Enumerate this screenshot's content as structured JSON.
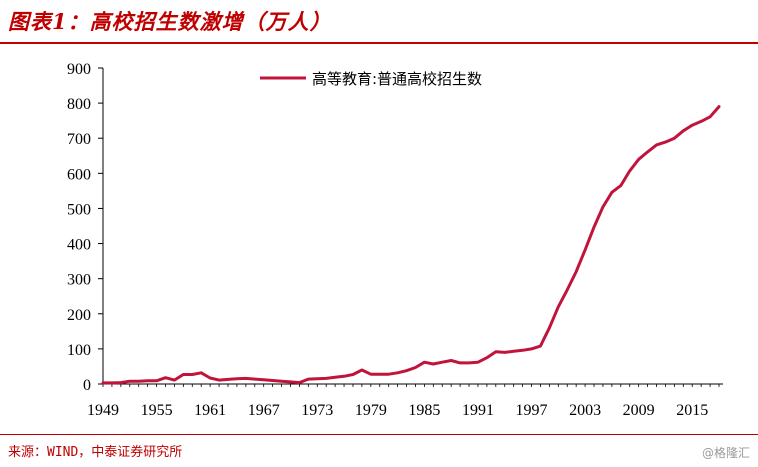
{
  "header": {
    "title": "图表1：高校招生数激增（万人）"
  },
  "footer": {
    "source": "来源：WIND，中泰证券研究所",
    "watermark": "@格隆汇"
  },
  "colors": {
    "accent": "#c00000",
    "series_line": "#c0143c"
  },
  "chart_data": {
    "type": "line",
    "title": "",
    "xlabel": "",
    "ylabel": "",
    "ylim": [
      0,
      900
    ],
    "yticks": [
      0,
      100,
      200,
      300,
      400,
      500,
      600,
      700,
      800,
      900
    ],
    "xlim": [
      1949,
      2018
    ],
    "xticks": [
      1949,
      1955,
      1961,
      1967,
      1973,
      1979,
      1985,
      1991,
      1997,
      2003,
      2009,
      2015
    ],
    "grid": false,
    "legend_position": "top",
    "series": [
      {
        "name": "高等教育:普通高校招生数",
        "x": [
          1949,
          1950,
          1951,
          1952,
          1953,
          1954,
          1955,
          1956,
          1957,
          1958,
          1959,
          1960,
          1961,
          1962,
          1963,
          1964,
          1965,
          1966,
          1967,
          1968,
          1969,
          1970,
          1971,
          1972,
          1973,
          1974,
          1975,
          1976,
          1977,
          1978,
          1979,
          1980,
          1981,
          1982,
          1983,
          1984,
          1985,
          1986,
          1987,
          1988,
          1989,
          1990,
          1991,
          1992,
          1993,
          1994,
          1995,
          1996,
          1997,
          1998,
          1999,
          2000,
          2001,
          2002,
          2003,
          2004,
          2005,
          2006,
          2007,
          2008,
          2009,
          2010,
          2011,
          2012,
          2013,
          2014,
          2015,
          2016,
          2017,
          2018
        ],
        "values": [
          3,
          3,
          4,
          8,
          8,
          9,
          9,
          18,
          11,
          27,
          27,
          32,
          17,
          11,
          13,
          15,
          16,
          14,
          12,
          10,
          8,
          6,
          4,
          14,
          15,
          16,
          19,
          22,
          27,
          40,
          28,
          28,
          28,
          32,
          38,
          47,
          62,
          57,
          62,
          67,
          60,
          60,
          62,
          75,
          92,
          90,
          93,
          96,
          100,
          108,
          160,
          220,
          268,
          320,
          382,
          447,
          504,
          546,
          565,
          607,
          640,
          661,
          681,
          689,
          700,
          721,
          737,
          748,
          761,
          790
        ]
      }
    ]
  }
}
